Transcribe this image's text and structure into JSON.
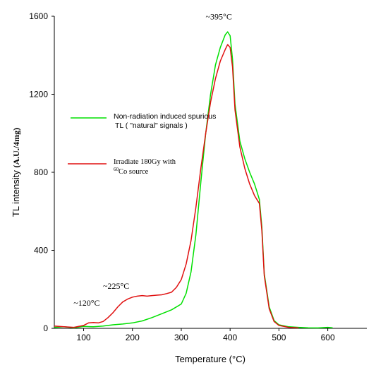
{
  "chart_data": {
    "type": "line",
    "xlabel": "Temperature (°C)",
    "ylabel_prefix": "TL intensity ",
    "ylabel_unit": "(A.U./4mg)",
    "xlim": [
      40,
      680
    ],
    "ylim": [
      0,
      1600
    ],
    "x_ticks": [
      100,
      200,
      300,
      400,
      500,
      600
    ],
    "y_ticks": [
      0,
      400,
      800,
      1200,
      1600
    ],
    "grid": false,
    "legend_placement": "left",
    "annotations": [
      {
        "text": "~120°C",
        "x": 115,
        "y": 72
      },
      {
        "text": "~225°C",
        "x": 210,
        "y": 152
      },
      {
        "text": "~395°C",
        "x": 400,
        "y": 1555
      }
    ],
    "series": [
      {
        "name_line1": "Non-radiation induced spurious",
        "name_line2": "TL  ( \"natural\" signals )",
        "color": "#00e000",
        "x": [
          40,
          60,
          80,
          100,
          120,
          140,
          160,
          180,
          200,
          220,
          240,
          260,
          280,
          300,
          310,
          320,
          330,
          340,
          350,
          360,
          370,
          380,
          390,
          395,
          400,
          405,
          410,
          420,
          430,
          440,
          450,
          455,
          460,
          465,
          470,
          480,
          490,
          500,
          520,
          540,
          560,
          580,
          600,
          610
        ],
        "y": [
          5,
          8,
          3,
          10,
          8,
          12,
          18,
          22,
          28,
          38,
          55,
          75,
          95,
          125,
          180,
          290,
          480,
          750,
          1000,
          1200,
          1350,
          1440,
          1505,
          1520,
          1500,
          1380,
          1150,
          960,
          870,
          800,
          740,
          700,
          660,
          520,
          280,
          110,
          40,
          18,
          8,
          5,
          3,
          2,
          5,
          3
        ]
      },
      {
        "name_line1": "Irradiate 180Gy with",
        "name_line2_sup": "60",
        "name_line2": "Co source",
        "color": "#e01010",
        "x": [
          40,
          60,
          80,
          100,
          110,
          120,
          130,
          140,
          150,
          160,
          170,
          180,
          190,
          200,
          210,
          220,
          230,
          240,
          250,
          260,
          270,
          280,
          290,
          300,
          310,
          320,
          330,
          340,
          350,
          360,
          370,
          380,
          390,
          395,
          400,
          405,
          410,
          420,
          430,
          440,
          450,
          455,
          460,
          465,
          470,
          480,
          490,
          500,
          520,
          540
        ],
        "y": [
          12,
          8,
          5,
          15,
          28,
          30,
          28,
          35,
          55,
          80,
          110,
          135,
          150,
          160,
          165,
          168,
          165,
          168,
          170,
          172,
          178,
          185,
          210,
          250,
          330,
          450,
          620,
          820,
          1000,
          1160,
          1280,
          1370,
          1430,
          1455,
          1440,
          1340,
          1120,
          930,
          820,
          740,
          680,
          660,
          640,
          500,
          270,
          100,
          35,
          15,
          5,
          2
        ]
      }
    ]
  }
}
